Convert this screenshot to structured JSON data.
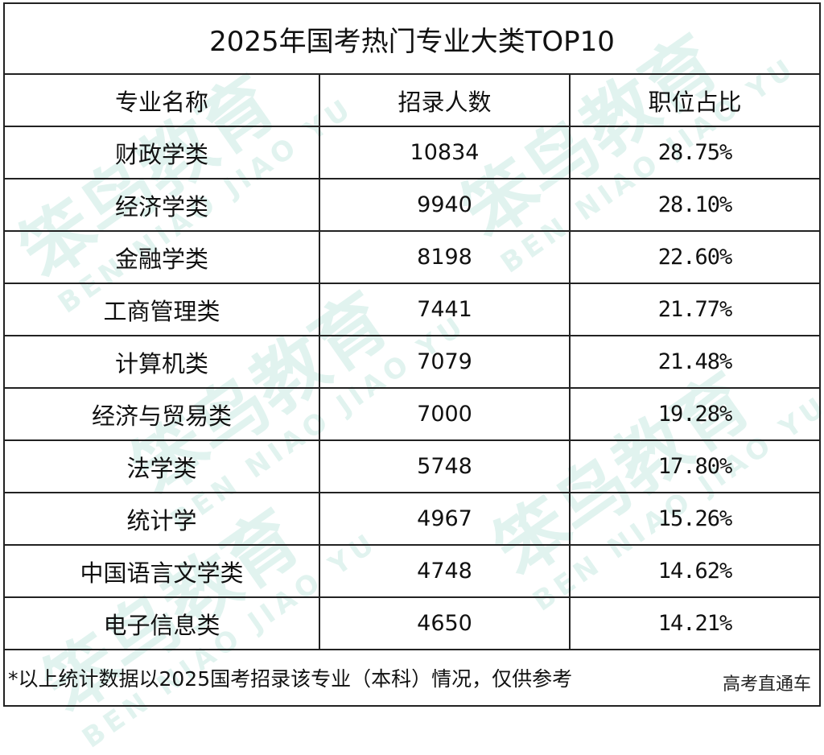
{
  "title": "2025年国考热门专业大类TOP10",
  "headers": [
    "专业名称",
    "招录人数",
    "职位占比"
  ],
  "rows": [
    {
      "major": "财政学类",
      "count": "10834",
      "share": "28.75%"
    },
    {
      "major": "经济学类",
      "count": "9940",
      "share": "28.10%"
    },
    {
      "major": "金融学类",
      "count": "8198",
      "share": "22.60%"
    },
    {
      "major": "工商管理类",
      "count": "7441",
      "share": "21.77%"
    },
    {
      "major": "计算机类",
      "count": "7079",
      "share": "21.48%"
    },
    {
      "major": "经济与贸易类",
      "count": "7000",
      "share": "19.28%"
    },
    {
      "major": "法学类",
      "count": "5748",
      "share": "17.80%"
    },
    {
      "major": "统计学",
      "count": "4967",
      "share": "15.26%"
    },
    {
      "major": "中国语言文学类",
      "count": "4748",
      "share": "14.62%"
    },
    {
      "major": "电子信息类",
      "count": "4650",
      "share": "14.21%"
    }
  ],
  "note": "*以上统计数据以2025国考招录该专业（本科）情况，仅供参考",
  "source": "高考直通车",
  "watermark": {
    "brand": "笨鸟教育",
    "pinyin": "BEN NIAO JIAO YU"
  }
}
